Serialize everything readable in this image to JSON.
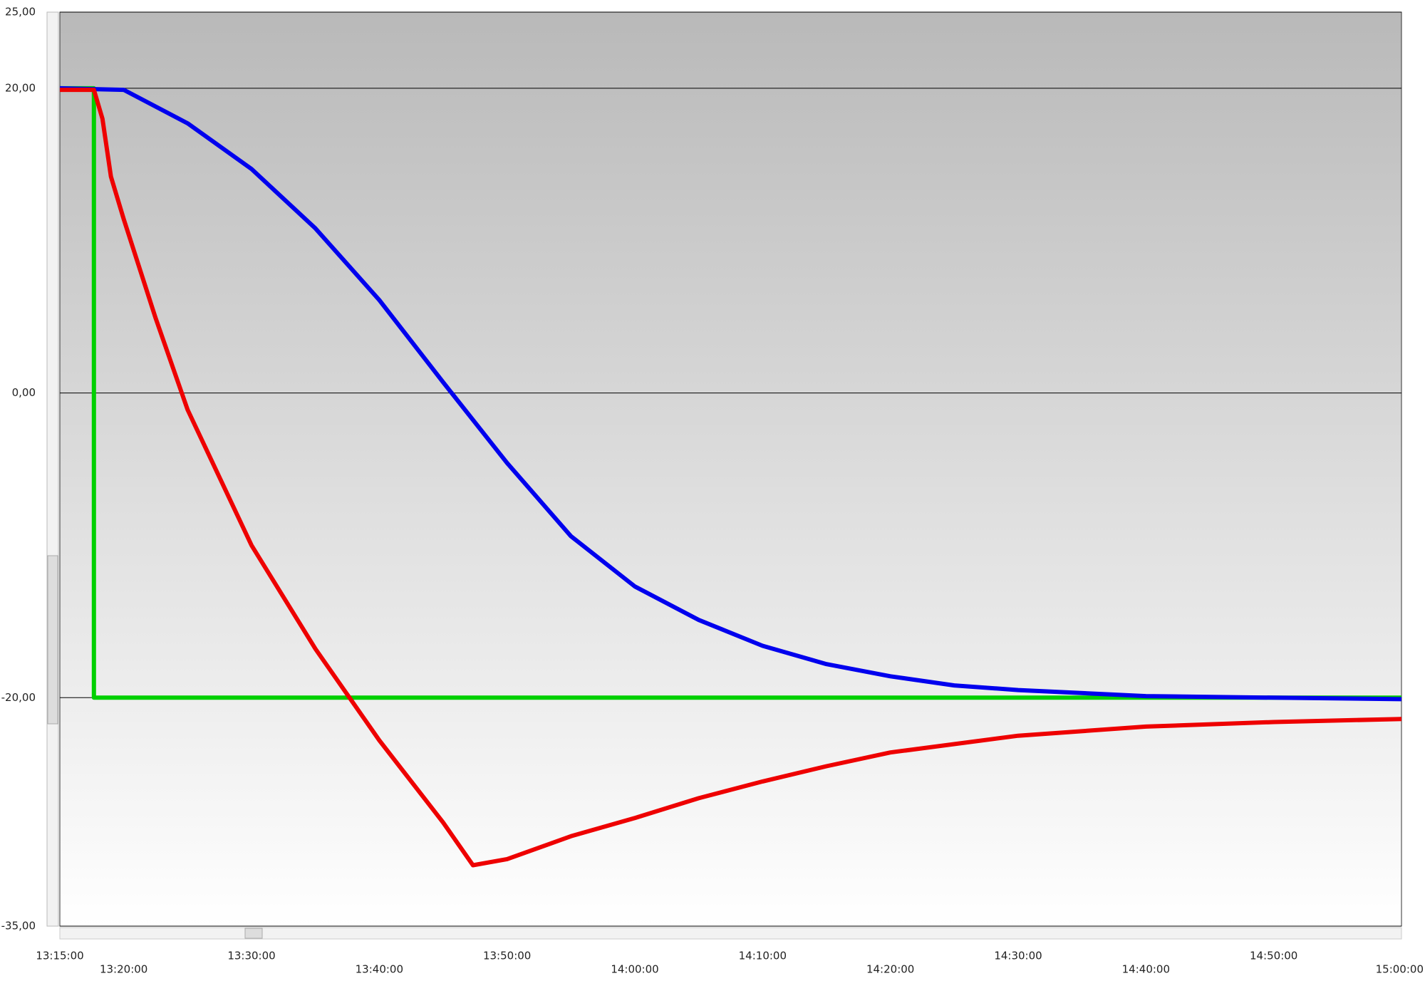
{
  "chart_data": {
    "type": "line",
    "xlim": [
      "13:15:00",
      "15:00:00"
    ],
    "xticks": [
      "13:15:00",
      "13:20:00",
      "13:30:00",
      "13:40:00",
      "13:50:00",
      "14:00:00",
      "14:10:00",
      "14:20:00",
      "14:30:00",
      "14:40:00",
      "14:50:00",
      "15:00:00"
    ],
    "ylim": [
      -35,
      25
    ],
    "yticks": [
      {
        "value": 25,
        "label": "25,00"
      },
      {
        "value": 20,
        "label": "20,00"
      },
      {
        "value": 0,
        "label": "0,00"
      },
      {
        "value": -20,
        "label": "-20,00"
      },
      {
        "value": -35,
        "label": "-35,00"
      }
    ],
    "grid": true,
    "series": [
      {
        "color": "#00d000",
        "x": [
          "13:15:00",
          "13:17:40",
          "13:17:40",
          "15:00:00"
        ],
        "values": [
          20,
          20,
          -20,
          -20
        ]
      },
      {
        "color": "#0000ee",
        "x": [
          "13:15:00",
          "13:20:00",
          "13:25:00",
          "13:30:00",
          "13:35:00",
          "13:40:00",
          "13:45:00",
          "13:50:00",
          "13:55:00",
          "14:00:00",
          "14:05:00",
          "14:10:00",
          "14:15:00",
          "14:20:00",
          "14:25:00",
          "14:30:00",
          "14:40:00",
          "14:50:00",
          "15:00:00"
        ],
        "values": [
          20,
          19.9,
          17.7,
          14.7,
          10.8,
          6.1,
          0.7,
          -4.6,
          -9.4,
          -12.7,
          -14.9,
          -16.6,
          -17.8,
          -18.6,
          -19.2,
          -19.5,
          -19.9,
          -20.0,
          -20.1
        ]
      },
      {
        "color": "#ee0000",
        "x": [
          "13:15:00",
          "13:17:40",
          "13:18:20",
          "13:19:00",
          "13:20:00",
          "13:22:30",
          "13:25:00",
          "13:30:00",
          "13:35:00",
          "13:40:00",
          "13:45:00",
          "13:47:20",
          "13:50:00",
          "13:55:00",
          "14:00:00",
          "14:05:00",
          "14:10:00",
          "14:15:00",
          "14:20:00",
          "14:30:00",
          "14:40:00",
          "14:50:00",
          "15:00:00"
        ],
        "values": [
          19.9,
          19.9,
          18,
          14.2,
          11.4,
          4.9,
          -1.1,
          -10,
          -16.8,
          -22.8,
          -28.2,
          -31.0,
          -30.6,
          -29.1,
          -27.9,
          -26.6,
          -25.5,
          -24.5,
          -23.6,
          -22.5,
          -21.9,
          -21.6,
          -21.4
        ]
      }
    ]
  }
}
